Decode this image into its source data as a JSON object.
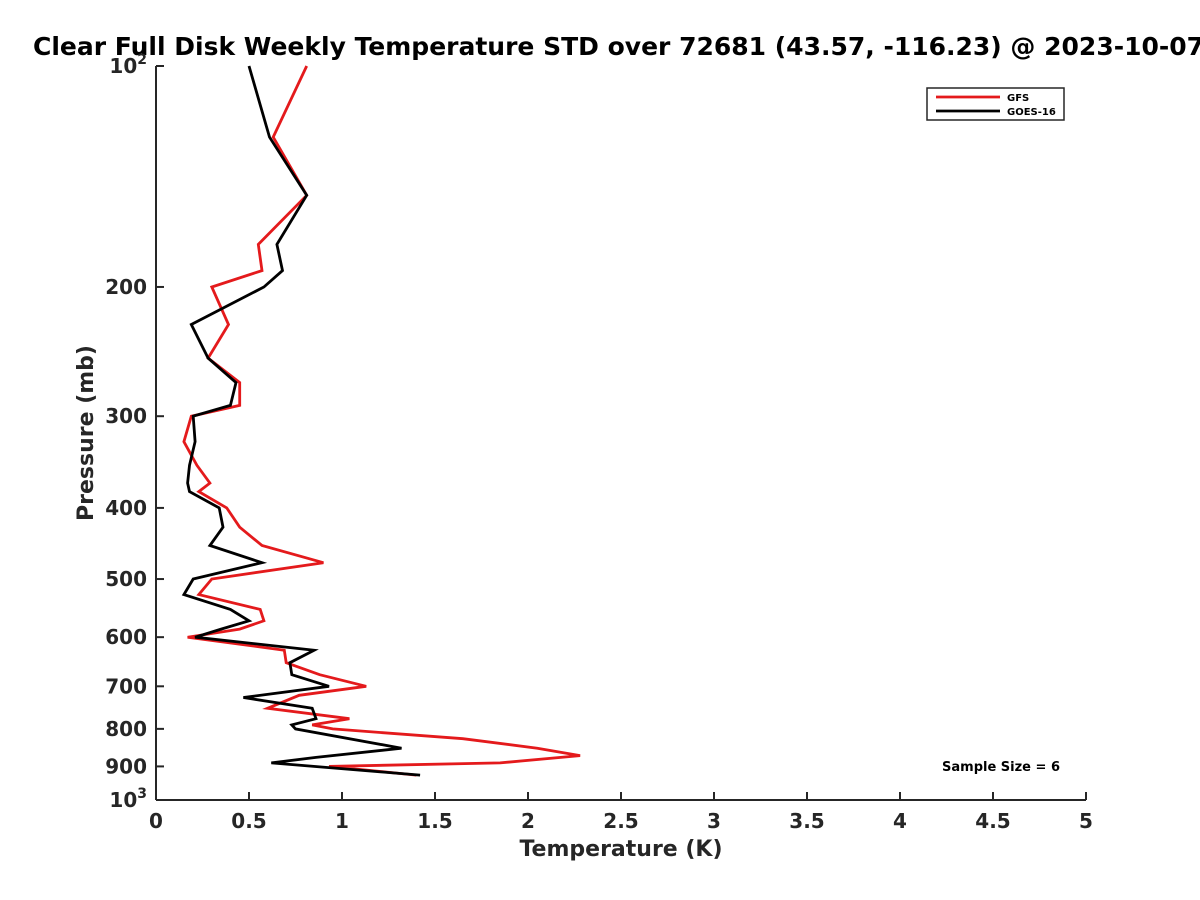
{
  "chart_data": {
    "type": "line",
    "title": "Clear Full Disk Weekly Temperature STD over 72681 (43.57, -116.23) @ 2023-10-07",
    "xlabel": "Temperature (K)",
    "ylabel": "Pressure (mb)",
    "xlim": [
      0,
      5
    ],
    "ylim": [
      100,
      1000
    ],
    "y_scale": "log",
    "y_reversed": true,
    "x_ticks": [
      "0",
      "0.5",
      "1",
      "1.5",
      "2",
      "2.5",
      "3",
      "3.5",
      "4",
      "4.5",
      "5"
    ],
    "y_ticks": [
      {
        "value": 100,
        "base": "10",
        "exp": "2"
      },
      {
        "value": 200,
        "label": "200"
      },
      {
        "value": 300,
        "label": "300"
      },
      {
        "value": 400,
        "label": "400"
      },
      {
        "value": 500,
        "label": "500"
      },
      {
        "value": 600,
        "label": "600"
      },
      {
        "value": 700,
        "label": "700"
      },
      {
        "value": 800,
        "label": "800"
      },
      {
        "value": 900,
        "label": "900"
      },
      {
        "value": 1000,
        "base": "10",
        "exp": "3"
      }
    ],
    "legend_position": "top-right",
    "annotation": "Sample Size = 6",
    "series": [
      {
        "name": "GFS",
        "color": "#e41a1c",
        "points": [
          [
            0.81,
            100
          ],
          [
            0.63,
            125
          ],
          [
            0.81,
            150
          ],
          [
            0.55,
            175
          ],
          [
            0.57,
            190
          ],
          [
            0.3,
            200
          ],
          [
            0.39,
            225
          ],
          [
            0.28,
            250
          ],
          [
            0.45,
            270
          ],
          [
            0.45,
            290
          ],
          [
            0.19,
            300
          ],
          [
            0.15,
            325
          ],
          [
            0.22,
            350
          ],
          [
            0.29,
            370
          ],
          [
            0.23,
            380
          ],
          [
            0.38,
            400
          ],
          [
            0.45,
            425
          ],
          [
            0.57,
            450
          ],
          [
            0.9,
            475
          ],
          [
            0.3,
            500
          ],
          [
            0.23,
            525
          ],
          [
            0.56,
            550
          ],
          [
            0.58,
            570
          ],
          [
            0.45,
            585
          ],
          [
            0.17,
            600
          ],
          [
            0.69,
            625
          ],
          [
            0.7,
            650
          ],
          [
            0.88,
            675
          ],
          [
            1.13,
            700
          ],
          [
            0.77,
            720
          ],
          [
            0.6,
            750
          ],
          [
            1.04,
            775
          ],
          [
            0.84,
            790
          ],
          [
            0.95,
            800
          ],
          [
            1.65,
            825
          ],
          [
            2.05,
            850
          ],
          [
            2.28,
            870
          ],
          [
            1.85,
            890
          ],
          [
            0.93,
            900
          ],
          [
            1.4,
            925
          ]
        ]
      },
      {
        "name": "GOES-16",
        "color": "#000000",
        "points": [
          [
            0.5,
            100
          ],
          [
            0.61,
            125
          ],
          [
            0.81,
            150
          ],
          [
            0.65,
            175
          ],
          [
            0.68,
            190
          ],
          [
            0.58,
            200
          ],
          [
            0.19,
            225
          ],
          [
            0.28,
            250
          ],
          [
            0.43,
            270
          ],
          [
            0.4,
            290
          ],
          [
            0.2,
            300
          ],
          [
            0.21,
            325
          ],
          [
            0.18,
            350
          ],
          [
            0.17,
            370
          ],
          [
            0.18,
            380
          ],
          [
            0.34,
            400
          ],
          [
            0.36,
            425
          ],
          [
            0.29,
            450
          ],
          [
            0.57,
            475
          ],
          [
            0.2,
            500
          ],
          [
            0.15,
            525
          ],
          [
            0.4,
            550
          ],
          [
            0.5,
            570
          ],
          [
            0.35,
            585
          ],
          [
            0.21,
            600
          ],
          [
            0.85,
            625
          ],
          [
            0.72,
            650
          ],
          [
            0.73,
            675
          ],
          [
            0.93,
            700
          ],
          [
            0.47,
            725
          ],
          [
            0.84,
            750
          ],
          [
            0.86,
            775
          ],
          [
            0.73,
            790
          ],
          [
            0.75,
            800
          ],
          [
            1.32,
            850
          ],
          [
            0.86,
            875
          ],
          [
            0.62,
            890
          ],
          [
            1.42,
            925
          ]
        ]
      }
    ]
  }
}
